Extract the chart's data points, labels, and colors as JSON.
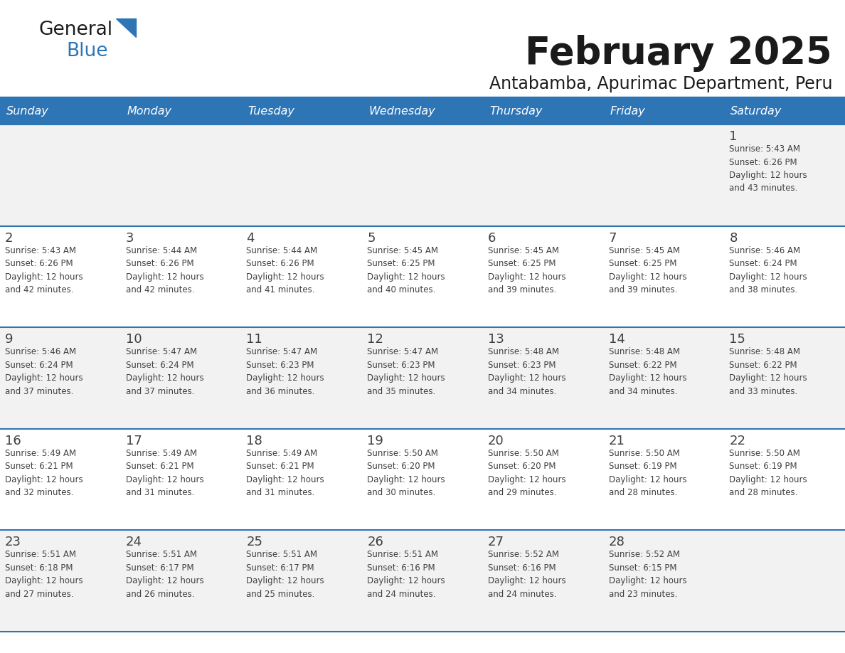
{
  "title": "February 2025",
  "subtitle": "Antabamba, Apurimac Department, Peru",
  "header_bg": "#2E75B6",
  "header_text_color": "#FFFFFF",
  "cell_bg_odd": "#F2F2F2",
  "cell_bg_even": "#FFFFFF",
  "day_number_color": "#404040",
  "text_color": "#404040",
  "line_color": "#2E75B6",
  "logo_general_color": "#1a1a1a",
  "logo_blue_color": "#2E75B6",
  "logo_triangle_color": "#2E75B6",
  "days_of_week": [
    "Sunday",
    "Monday",
    "Tuesday",
    "Wednesday",
    "Thursday",
    "Friday",
    "Saturday"
  ],
  "weeks": [
    [
      {
        "day": "",
        "info": ""
      },
      {
        "day": "",
        "info": ""
      },
      {
        "day": "",
        "info": ""
      },
      {
        "day": "",
        "info": ""
      },
      {
        "day": "",
        "info": ""
      },
      {
        "day": "",
        "info": ""
      },
      {
        "day": "1",
        "info": "Sunrise: 5:43 AM\nSunset: 6:26 PM\nDaylight: 12 hours\nand 43 minutes."
      }
    ],
    [
      {
        "day": "2",
        "info": "Sunrise: 5:43 AM\nSunset: 6:26 PM\nDaylight: 12 hours\nand 42 minutes."
      },
      {
        "day": "3",
        "info": "Sunrise: 5:44 AM\nSunset: 6:26 PM\nDaylight: 12 hours\nand 42 minutes."
      },
      {
        "day": "4",
        "info": "Sunrise: 5:44 AM\nSunset: 6:26 PM\nDaylight: 12 hours\nand 41 minutes."
      },
      {
        "day": "5",
        "info": "Sunrise: 5:45 AM\nSunset: 6:25 PM\nDaylight: 12 hours\nand 40 minutes."
      },
      {
        "day": "6",
        "info": "Sunrise: 5:45 AM\nSunset: 6:25 PM\nDaylight: 12 hours\nand 39 minutes."
      },
      {
        "day": "7",
        "info": "Sunrise: 5:45 AM\nSunset: 6:25 PM\nDaylight: 12 hours\nand 39 minutes."
      },
      {
        "day": "8",
        "info": "Sunrise: 5:46 AM\nSunset: 6:24 PM\nDaylight: 12 hours\nand 38 minutes."
      }
    ],
    [
      {
        "day": "9",
        "info": "Sunrise: 5:46 AM\nSunset: 6:24 PM\nDaylight: 12 hours\nand 37 minutes."
      },
      {
        "day": "10",
        "info": "Sunrise: 5:47 AM\nSunset: 6:24 PM\nDaylight: 12 hours\nand 37 minutes."
      },
      {
        "day": "11",
        "info": "Sunrise: 5:47 AM\nSunset: 6:23 PM\nDaylight: 12 hours\nand 36 minutes."
      },
      {
        "day": "12",
        "info": "Sunrise: 5:47 AM\nSunset: 6:23 PM\nDaylight: 12 hours\nand 35 minutes."
      },
      {
        "day": "13",
        "info": "Sunrise: 5:48 AM\nSunset: 6:23 PM\nDaylight: 12 hours\nand 34 minutes."
      },
      {
        "day": "14",
        "info": "Sunrise: 5:48 AM\nSunset: 6:22 PM\nDaylight: 12 hours\nand 34 minutes."
      },
      {
        "day": "15",
        "info": "Sunrise: 5:48 AM\nSunset: 6:22 PM\nDaylight: 12 hours\nand 33 minutes."
      }
    ],
    [
      {
        "day": "16",
        "info": "Sunrise: 5:49 AM\nSunset: 6:21 PM\nDaylight: 12 hours\nand 32 minutes."
      },
      {
        "day": "17",
        "info": "Sunrise: 5:49 AM\nSunset: 6:21 PM\nDaylight: 12 hours\nand 31 minutes."
      },
      {
        "day": "18",
        "info": "Sunrise: 5:49 AM\nSunset: 6:21 PM\nDaylight: 12 hours\nand 31 minutes."
      },
      {
        "day": "19",
        "info": "Sunrise: 5:50 AM\nSunset: 6:20 PM\nDaylight: 12 hours\nand 30 minutes."
      },
      {
        "day": "20",
        "info": "Sunrise: 5:50 AM\nSunset: 6:20 PM\nDaylight: 12 hours\nand 29 minutes."
      },
      {
        "day": "21",
        "info": "Sunrise: 5:50 AM\nSunset: 6:19 PM\nDaylight: 12 hours\nand 28 minutes."
      },
      {
        "day": "22",
        "info": "Sunrise: 5:50 AM\nSunset: 6:19 PM\nDaylight: 12 hours\nand 28 minutes."
      }
    ],
    [
      {
        "day": "23",
        "info": "Sunrise: 5:51 AM\nSunset: 6:18 PM\nDaylight: 12 hours\nand 27 minutes."
      },
      {
        "day": "24",
        "info": "Sunrise: 5:51 AM\nSunset: 6:17 PM\nDaylight: 12 hours\nand 26 minutes."
      },
      {
        "day": "25",
        "info": "Sunrise: 5:51 AM\nSunset: 6:17 PM\nDaylight: 12 hours\nand 25 minutes."
      },
      {
        "day": "26",
        "info": "Sunrise: 5:51 AM\nSunset: 6:16 PM\nDaylight: 12 hours\nand 24 minutes."
      },
      {
        "day": "27",
        "info": "Sunrise: 5:52 AM\nSunset: 6:16 PM\nDaylight: 12 hours\nand 24 minutes."
      },
      {
        "day": "28",
        "info": "Sunrise: 5:52 AM\nSunset: 6:15 PM\nDaylight: 12 hours\nand 23 minutes."
      },
      {
        "day": "",
        "info": ""
      }
    ]
  ]
}
